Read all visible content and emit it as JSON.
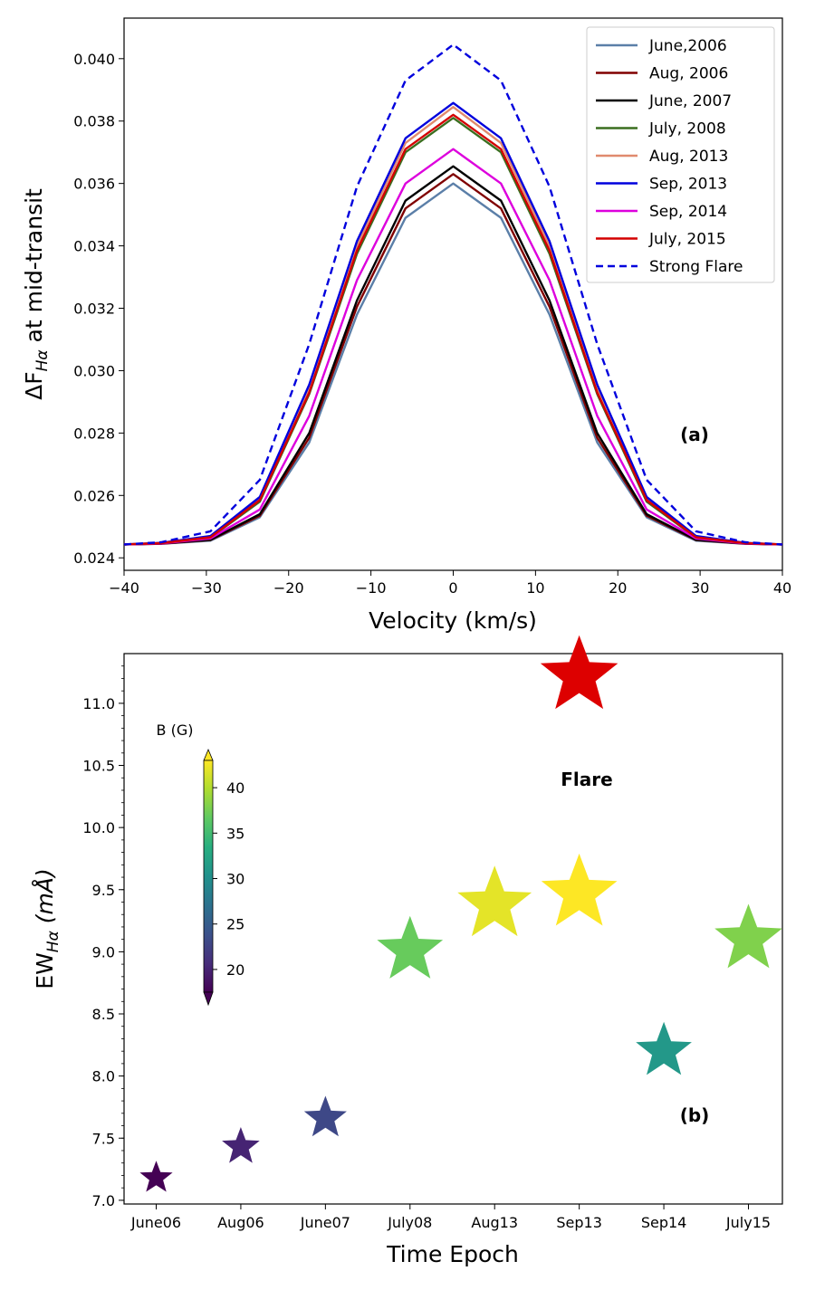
{
  "chart_data": [
    {
      "type": "line",
      "panel_label": "(a)",
      "xlabel": "Velocity (km/s)",
      "ylabel_prefix": "ΔF",
      "ylabel_sub": "Hα",
      "ylabel_suffix": " at mid-transit",
      "xlim": [
        -40,
        40
      ],
      "ylim": [
        0.0236,
        0.0413
      ],
      "xticks": [
        -40,
        -30,
        -20,
        -10,
        0,
        10,
        20,
        30,
        40
      ],
      "xtick_labels": [
        "−40",
        "−30",
        "−20",
        "−10",
        "0",
        "10",
        "20",
        "30",
        "40"
      ],
      "yticks": [
        0.024,
        0.026,
        0.028,
        0.03,
        0.032,
        0.034,
        0.036,
        0.038,
        0.04
      ],
      "ytick_labels": [
        "0.024",
        "0.026",
        "0.028",
        "0.030",
        "0.032",
        "0.034",
        "0.036",
        "0.038",
        "0.040"
      ],
      "legend_position": "top-right",
      "x": [
        -40,
        -35.5,
        -29.5,
        -23.5,
        -17.5,
        -11.7,
        -5.8,
        0,
        5.8,
        11.7,
        17.5,
        23.5,
        29.5,
        35.5,
        40
      ],
      "series": [
        {
          "name": "June,2006",
          "color": "#5b7fa8",
          "dash": false,
          "values": [
            0.02443,
            0.02445,
            0.02455,
            0.0253,
            0.0277,
            0.0318,
            0.0349,
            0.036,
            0.0349,
            0.0318,
            0.0277,
            0.0253,
            0.02455,
            0.02445,
            0.02443
          ]
        },
        {
          "name": "Aug, 2006",
          "color": "#800000",
          "dash": false,
          "values": [
            0.02443,
            0.02445,
            0.02457,
            0.02535,
            0.02785,
            0.03205,
            0.0352,
            0.0363,
            0.0352,
            0.03205,
            0.02785,
            0.02535,
            0.02457,
            0.02445,
            0.02443
          ]
        },
        {
          "name": "June, 2007",
          "color": "#000000",
          "dash": false,
          "values": [
            0.02443,
            0.02446,
            0.02458,
            0.0254,
            0.028,
            0.03225,
            0.03545,
            0.03655,
            0.03545,
            0.03225,
            0.028,
            0.0254,
            0.02458,
            0.02446,
            0.02443
          ]
        },
        {
          "name": "July, 2008",
          "color": "#3a6e1f",
          "dash": false,
          "values": [
            0.02443,
            0.02447,
            0.02465,
            0.0258,
            0.02925,
            0.03375,
            0.037,
            0.0381,
            0.037,
            0.03375,
            0.02925,
            0.0258,
            0.02465,
            0.02447,
            0.02443
          ]
        },
        {
          "name": "Aug, 2013",
          "color": "#e08a6e",
          "dash": false,
          "values": [
            0.02443,
            0.02447,
            0.02468,
            0.0259,
            0.0294,
            0.034,
            0.0373,
            0.03845,
            0.0373,
            0.034,
            0.0294,
            0.0259,
            0.02468,
            0.02447,
            0.02443
          ]
        },
        {
          "name": "Sep, 2013",
          "color": "#0000dd",
          "dash": false,
          "values": [
            0.02443,
            0.02448,
            0.0247,
            0.02595,
            0.02955,
            0.03415,
            0.03745,
            0.03858,
            0.03745,
            0.03415,
            0.02955,
            0.02595,
            0.0247,
            0.02448,
            0.02443
          ]
        },
        {
          "name": "Sep, 2014",
          "color": "#dd00dd",
          "dash": false,
          "values": [
            0.02443,
            0.02446,
            0.02462,
            0.02555,
            0.02855,
            0.0329,
            0.036,
            0.0371,
            0.036,
            0.0329,
            0.02855,
            0.02555,
            0.02462,
            0.02446,
            0.02443
          ]
        },
        {
          "name": "July, 2015",
          "color": "#d40000",
          "dash": false,
          "values": [
            0.02443,
            0.02447,
            0.02466,
            0.02585,
            0.0293,
            0.03385,
            0.0371,
            0.0382,
            0.0371,
            0.03385,
            0.0293,
            0.02585,
            0.02466,
            0.02447,
            0.02443
          ]
        },
        {
          "name": "Strong Flare",
          "color": "#0000dd",
          "dash": true,
          "values": [
            0.02443,
            0.0245,
            0.02485,
            0.0265,
            0.03085,
            0.0359,
            0.0393,
            0.04045,
            0.0393,
            0.0359,
            0.03085,
            0.0265,
            0.02485,
            0.0245,
            0.02443
          ]
        }
      ]
    },
    {
      "type": "scatter",
      "panel_label": "(b)",
      "annotation": "Flare",
      "xlabel": "Time Epoch",
      "ylabel_prefix": "EW",
      "ylabel_sub": "Hα",
      "ylabel_suffix": " (mÅ)",
      "categories": [
        "June06",
        "Aug06",
        "June07",
        "July08",
        "Aug13",
        "Sep13",
        "Sep14",
        "July15"
      ],
      "values": [
        7.18,
        7.43,
        7.66,
        9.01,
        9.38,
        9.47,
        8.2,
        9.1
      ],
      "b_field": [
        17,
        20,
        23,
        37,
        42,
        43,
        31,
        38
      ],
      "flare_point": {
        "category": "Sep13",
        "value": 11.22,
        "color": "#dd0000"
      },
      "ylim": [
        6.97,
        11.4
      ],
      "yticks": [
        7.0,
        7.5,
        8.0,
        8.5,
        9.0,
        9.5,
        10.0,
        10.5,
        11.0
      ],
      "ytick_labels": [
        "7.0",
        "7.5",
        "8.0",
        "8.5",
        "9.0",
        "9.5",
        "10.0",
        "10.5",
        "11.0"
      ],
      "colorbar": {
        "title": "B (G)",
        "colormap": "viridis",
        "min": 17.5,
        "max": 43,
        "ticks": [
          20,
          25,
          30,
          35,
          40
        ],
        "tick_labels": [
          "20",
          "25",
          "30",
          "35",
          "40"
        ]
      }
    }
  ]
}
